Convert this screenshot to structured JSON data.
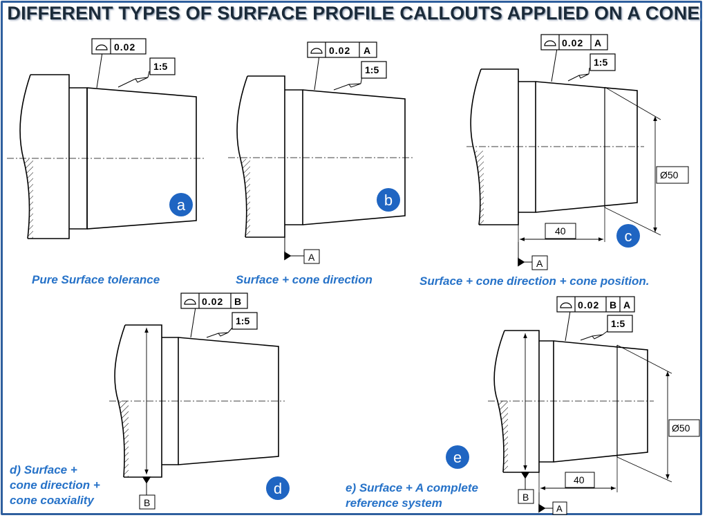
{
  "title": "DIFFERENT TYPES OF SURFACE PROFILE CALLOUTS APPLIED ON A CONE",
  "colors": {
    "badge": "#1f65c2",
    "caption": "#2672c8",
    "frame": "#2f5f9e",
    "line": "#000000"
  },
  "symbol_icon": "surface-profile-icon",
  "views": {
    "a": {
      "badge": "a",
      "tolerance": "0.02",
      "taper": "1:5",
      "caption": "Pure Surface tolerance"
    },
    "b": {
      "badge": "b",
      "tolerance": "0.02",
      "datum_ref": "A",
      "taper": "1:5",
      "datum_label": "A",
      "caption": "Surface + cone direction"
    },
    "c": {
      "badge": "c",
      "tolerance": "0.02",
      "datum_ref": "A",
      "taper": "1:5",
      "datum_label": "A",
      "diameter": "Ø50",
      "length": "40",
      "caption": "Surface + cone direction + cone position."
    },
    "d": {
      "badge": "d",
      "tolerance": "0.02",
      "datum_ref": "B",
      "taper": "1:5",
      "datum_label": "B",
      "caption_lines": [
        "d) Surface +",
        "cone direction +",
        "cone  coaxiality"
      ]
    },
    "e": {
      "badge": "e",
      "tolerance": "0.02",
      "datum_ref_1": "B",
      "datum_ref_2": "A",
      "taper": "1:5",
      "datum_label_1": "B",
      "datum_label_2": "A",
      "diameter": "Ø50",
      "length": "40",
      "caption_lines": [
        "e) Surface + A complete",
        "reference system"
      ]
    }
  }
}
